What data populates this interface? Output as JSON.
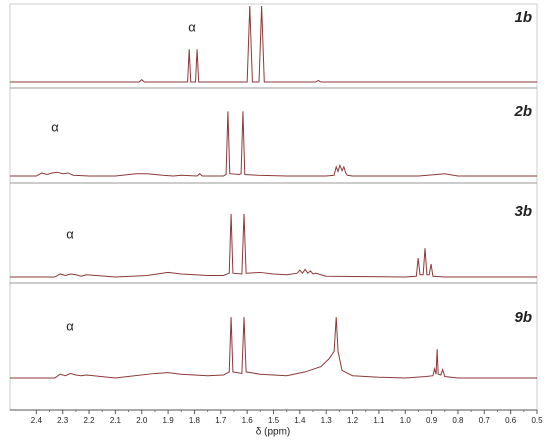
{
  "chart_data": {
    "type": "line",
    "xlabel": "δ (ppm)",
    "xlim": [
      2.5,
      0.5
    ],
    "ylim": [
      0,
      100
    ],
    "xticks": [
      2.4,
      2.3,
      2.2,
      2.1,
      {
        "value": 2,
        "label": "2.0"
      },
      1.9,
      1.8,
      1.7,
      1.6,
      1.5,
      1.4,
      1.3,
      1.2,
      1.1,
      {
        "value": 1,
        "label": "1.0"
      },
      0.9,
      0.8,
      0.7,
      0.6,
      0.5
    ],
    "series": [
      {
        "name": "1b",
        "annotation": "α",
        "color": "#8b3a3a",
        "x": [
          2.5,
          2.01,
          2.0,
          1.99,
          1.826,
          1.82,
          1.814,
          1.796,
          1.79,
          1.784,
          1.6,
          1.59,
          1.58,
          1.555,
          1.545,
          1.535,
          1.34,
          1.33,
          1.32,
          0.5
        ],
        "values": [
          0,
          0,
          3,
          0,
          0,
          43,
          0,
          0,
          43,
          0,
          0,
          100,
          0,
          0,
          100,
          0,
          0,
          2,
          0,
          0
        ]
      },
      {
        "name": "2b",
        "annotation": "α",
        "color": "#8b3a3a",
        "x": [
          2.5,
          2.4,
          2.38,
          2.36,
          2.34,
          2.32,
          2.3,
          2.28,
          2.26,
          2.2,
          2.1,
          2.02,
          1.98,
          1.92,
          1.88,
          1.85,
          1.79,
          1.78,
          1.77,
          1.69,
          1.68,
          1.673,
          1.666,
          1.63,
          1.623,
          1.616,
          1.609,
          1.56,
          1.45,
          1.3,
          1.27,
          1.262,
          1.255,
          1.248,
          1.24,
          1.233,
          1.226,
          1.22,
          1.2,
          0.95,
          0.88,
          0.85,
          0.8,
          0.5
        ],
        "values": [
          0,
          0,
          4,
          2,
          4,
          5,
          3,
          4,
          1,
          0,
          0,
          3,
          3,
          1,
          0,
          1,
          0,
          3,
          0,
          0,
          2,
          85,
          3,
          2,
          3,
          85,
          2,
          1,
          0,
          0,
          1,
          12,
          6,
          14,
          7,
          12,
          4,
          1,
          0,
          0,
          2,
          3,
          0,
          0
        ]
      },
      {
        "name": "3b",
        "annotation": "α",
        "color": "#8b3a3a",
        "x": [
          2.5,
          2.33,
          2.31,
          2.29,
          2.27,
          2.25,
          2.23,
          2.21,
          2.1,
          1.98,
          1.9,
          1.85,
          1.75,
          1.69,
          1.668,
          1.661,
          1.654,
          1.62,
          1.612,
          1.604,
          1.55,
          1.5,
          1.45,
          1.41,
          1.4,
          1.39,
          1.38,
          1.37,
          1.36,
          1.35,
          1.34,
          1.3,
          1.0,
          0.958,
          0.951,
          0.944,
          0.932,
          0.925,
          0.918,
          0.909,
          0.902,
          0.895,
          0.85,
          0.5
        ],
        "values": [
          0,
          0,
          4,
          2,
          4,
          3,
          1,
          3,
          0,
          2,
          6,
          4,
          2,
          2,
          5,
          83,
          5,
          4,
          83,
          5,
          6,
          4,
          3,
          5,
          9,
          5,
          10,
          5,
          8,
          4,
          5,
          1,
          0,
          1,
          25,
          3,
          3,
          38,
          3,
          3,
          17,
          1,
          0,
          0
        ]
      },
      {
        "name": "9b",
        "annotation": "α",
        "color": "#8b3a3a",
        "x": [
          2.5,
          2.33,
          2.31,
          2.29,
          2.27,
          2.25,
          2.23,
          2.21,
          2.1,
          1.95,
          1.9,
          1.85,
          1.75,
          1.69,
          1.668,
          1.661,
          1.654,
          1.62,
          1.612,
          1.604,
          1.55,
          1.45,
          1.38,
          1.32,
          1.29,
          1.27,
          1.262,
          1.255,
          1.24,
          1.2,
          1.1,
          1.0,
          0.92,
          0.895,
          0.889,
          0.883,
          0.879,
          0.875,
          0.865,
          0.858,
          0.85,
          0.8,
          0.5
        ],
        "values": [
          0,
          0,
          5,
          3,
          6,
          4,
          3,
          4,
          0,
          6,
          7,
          5,
          3,
          4,
          8,
          80,
          8,
          6,
          80,
          8,
          5,
          3,
          8,
          15,
          25,
          35,
          80,
          35,
          10,
          3,
          1,
          0,
          2,
          3,
          12,
          5,
          38,
          5,
          4,
          11,
          2,
          0,
          0
        ]
      }
    ]
  }
}
